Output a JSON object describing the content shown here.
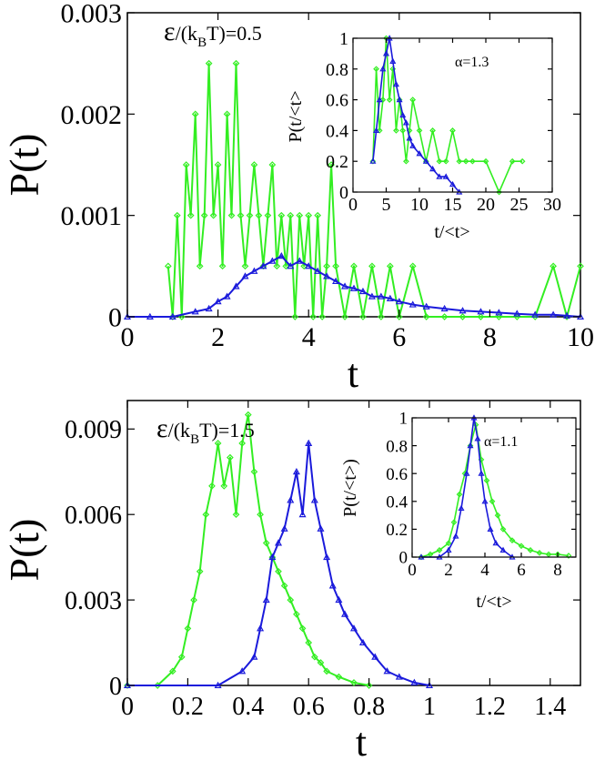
{
  "chart_data": [
    {
      "type": "line",
      "panel": "top",
      "annotation": {
        "symbol": "ε",
        "rest": "/(k",
        "sub": "B",
        "tail": "T)=0.5"
      },
      "xlabel": "t",
      "ylabel": "P(t)",
      "xlim": [
        0,
        10
      ],
      "ylim": [
        0,
        0.003
      ],
      "xticks": [
        0,
        2,
        4,
        6,
        8,
        10
      ],
      "yticks": [
        "0",
        "0.001",
        "0.002",
        "0.003"
      ],
      "ytick_values": [
        0,
        0.001,
        0.002,
        0.003
      ],
      "series": [
        {
          "color": "#33ee22",
          "marker": "diamond",
          "x": [
            0.9,
            1.0,
            1.1,
            1.2,
            1.3,
            1.4,
            1.5,
            1.6,
            1.7,
            1.8,
            1.9,
            2.0,
            2.1,
            2.2,
            2.3,
            2.4,
            2.5,
            2.6,
            2.7,
            2.8,
            2.9,
            3.0,
            3.1,
            3.2,
            3.3,
            3.4,
            3.5,
            3.6,
            3.7,
            3.8,
            3.9,
            4.0,
            4.1,
            4.2,
            4.3,
            4.4,
            4.5,
            4.6,
            4.8,
            5.0,
            5.2,
            5.4,
            5.6,
            5.8,
            6.0,
            6.3,
            6.6,
            7.0,
            7.4,
            7.8,
            8.2,
            8.6,
            9.0,
            9.4,
            9.7,
            10.0
          ],
          "y": [
            0.0005,
            0.0,
            0.001,
            0.0,
            0.0015,
            0.001,
            0.002,
            0.0005,
            0.001,
            0.0025,
            0.001,
            0.0015,
            0.0005,
            0.002,
            0.001,
            0.0025,
            0.001,
            0.0005,
            0.001,
            0.0015,
            0.001,
            0.0005,
            0.001,
            0.0015,
            0.0005,
            0.001,
            0.0005,
            0.001,
            0.0,
            0.001,
            0.0005,
            0.001,
            0.0,
            0.001,
            0.0,
            0.0005,
            0.0015,
            0.0005,
            0.0,
            0.0005,
            0.0,
            0.0005,
            0.0,
            0.0005,
            0.0,
            0.0005,
            0.0,
            0.0,
            0.0,
            0.0,
            0.0,
            0.0,
            0.0,
            0.0005,
            0.0,
            0.0005
          ]
        },
        {
          "color": "#1a1adb",
          "marker": "triangle",
          "x": [
            0.0,
            0.5,
            1.0,
            1.5,
            1.8,
            2.0,
            2.2,
            2.4,
            2.6,
            2.8,
            3.0,
            3.2,
            3.4,
            3.6,
            3.8,
            4.0,
            4.2,
            4.4,
            4.6,
            4.8,
            5.0,
            5.2,
            5.4,
            5.6,
            5.8,
            6.0,
            6.3,
            6.6,
            7.0,
            7.4,
            7.8,
            8.2,
            8.6,
            9.0,
            9.4,
            9.7,
            10.0
          ],
          "y": [
            0.0,
            0.0,
            0.0,
            5e-05,
            8e-05,
            0.00015,
            0.0002,
            0.0003,
            0.0004,
            0.00045,
            0.0005,
            0.00055,
            0.0006,
            0.0005,
            0.00055,
            0.0005,
            0.00045,
            0.0004,
            0.00035,
            0.0003,
            0.00028,
            0.00025,
            0.0002,
            0.0002,
            0.00018,
            0.00015,
            0.00012,
            0.0001,
            8e-05,
            6e-05,
            5e-05,
            4e-05,
            3e-05,
            2e-05,
            2e-05,
            1e-05,
            0.0
          ]
        }
      ],
      "inset": {
        "annotation": "α=1.3",
        "xlabel": "t/<t>",
        "ylabel": "P(t/<t>",
        "xlim": [
          0,
          30
        ],
        "ylim": [
          0,
          1
        ],
        "xticks": [
          0,
          5,
          10,
          15,
          20,
          25,
          30
        ],
        "yticks": [
          "0",
          "0.2",
          "0.4",
          "0.6",
          "0.8",
          "1"
        ],
        "ytick_values": [
          0,
          0.2,
          0.4,
          0.6,
          0.8,
          1.0
        ],
        "series": [
          {
            "color": "#33ee22",
            "marker": "diamond",
            "x": [
              3.0,
              3.5,
              4.0,
              4.5,
              5.0,
              5.5,
              6.0,
              6.5,
              7.0,
              7.5,
              8.0,
              8.5,
              9.0,
              10.0,
              11.0,
              12.0,
              13.0,
              14.0,
              15.0,
              16.0,
              17.0,
              18.0,
              20.0,
              22.0,
              24.0,
              25.5
            ],
            "y": [
              0.2,
              0.8,
              0.4,
              0.6,
              1.0,
              0.6,
              0.8,
              0.4,
              0.6,
              0.4,
              0.2,
              0.4,
              0.6,
              0.4,
              0.2,
              0.4,
              0.2,
              0.2,
              0.4,
              0.2,
              0.2,
              0.2,
              0.2,
              0.0,
              0.2,
              0.2
            ]
          },
          {
            "color": "#1a1adb",
            "marker": "triangle",
            "x": [
              3.0,
              3.5,
              4.0,
              4.5,
              5.0,
              5.5,
              6.0,
              6.5,
              7.0,
              7.5,
              8.0,
              8.5,
              9.0,
              10.0,
              11.0,
              12.0,
              13.0,
              14.0,
              15.0,
              16.0
            ],
            "y": [
              0.2,
              0.4,
              0.6,
              0.8,
              0.9,
              1.0,
              0.85,
              0.7,
              0.6,
              0.5,
              0.45,
              0.35,
              0.3,
              0.25,
              0.2,
              0.15,
              0.1,
              0.1,
              0.05,
              0.0
            ]
          }
        ]
      }
    },
    {
      "type": "line",
      "panel": "bottom",
      "annotation": {
        "symbol": "ε",
        "rest": "/(k",
        "sub": "B",
        "tail": "T)=1.5"
      },
      "xlabel": "t",
      "ylabel": "P(t)",
      "xlim": [
        0,
        1.5
      ],
      "ylim": [
        0,
        0.01
      ],
      "xticks": [
        "0",
        "0.2",
        "0.4",
        "0.6",
        "0.8",
        "1",
        "1.2",
        "1.4"
      ],
      "xtick_values": [
        0,
        0.2,
        0.4,
        0.6,
        0.8,
        1.0,
        1.2,
        1.4
      ],
      "yticks": [
        "0",
        "0.003",
        "0.006",
        "0.009"
      ],
      "ytick_values": [
        0,
        0.003,
        0.006,
        0.009
      ],
      "series": [
        {
          "color": "#33ee22",
          "marker": "diamond",
          "x": [
            0.0,
            0.1,
            0.15,
            0.18,
            0.2,
            0.22,
            0.24,
            0.26,
            0.28,
            0.3,
            0.32,
            0.34,
            0.36,
            0.38,
            0.4,
            0.42,
            0.44,
            0.46,
            0.48,
            0.5,
            0.52,
            0.54,
            0.56,
            0.58,
            0.6,
            0.62,
            0.64,
            0.66,
            0.7,
            0.75,
            0.8
          ],
          "y": [
            0.0,
            0.0,
            0.0005,
            0.001,
            0.002,
            0.003,
            0.004,
            0.006,
            0.007,
            0.0085,
            0.007,
            0.008,
            0.006,
            0.0085,
            0.0095,
            0.0075,
            0.006,
            0.005,
            0.0045,
            0.004,
            0.0035,
            0.003,
            0.0025,
            0.002,
            0.0015,
            0.001,
            0.0008,
            0.0005,
            0.0003,
            0.0001,
            0.0
          ]
        },
        {
          "color": "#1a1adb",
          "marker": "triangle",
          "x": [
            0.0,
            0.3,
            0.38,
            0.42,
            0.44,
            0.46,
            0.48,
            0.5,
            0.52,
            0.54,
            0.56,
            0.58,
            0.6,
            0.62,
            0.64,
            0.66,
            0.68,
            0.7,
            0.72,
            0.75,
            0.78,
            0.82,
            0.86,
            0.9,
            0.95,
            1.0
          ],
          "y": [
            0.0,
            0.0,
            0.0005,
            0.001,
            0.002,
            0.003,
            0.0045,
            0.005,
            0.0055,
            0.0065,
            0.0075,
            0.006,
            0.0085,
            0.0065,
            0.0055,
            0.0045,
            0.0035,
            0.003,
            0.0025,
            0.002,
            0.0015,
            0.001,
            0.0005,
            0.0003,
            0.0001,
            0.0
          ]
        }
      ],
      "inset": {
        "annotation": "α=1.1",
        "xlabel": "t/<t>",
        "ylabel": "P(t/<t>)",
        "xlim": [
          0,
          9
        ],
        "ylim": [
          0,
          1
        ],
        "xticks": [
          0,
          2,
          4,
          6,
          8
        ],
        "yticks": [
          "0",
          "0.2",
          "0.4",
          "0.6",
          "0.8",
          "1"
        ],
        "ytick_values": [
          0,
          0.2,
          0.4,
          0.6,
          0.8,
          1.0
        ],
        "series": [
          {
            "color": "#33ee22",
            "marker": "diamond",
            "x": [
              0.5,
              1.0,
              1.5,
              2.0,
              2.3,
              2.6,
              2.9,
              3.2,
              3.5,
              3.8,
              4.1,
              4.4,
              4.7,
              5.0,
              5.5,
              6.0,
              6.5,
              7.0,
              7.5,
              8.0,
              8.6
            ],
            "y": [
              0.0,
              0.02,
              0.05,
              0.1,
              0.25,
              0.45,
              0.6,
              0.8,
              0.95,
              0.7,
              0.55,
              0.4,
              0.3,
              0.2,
              0.12,
              0.08,
              0.05,
              0.03,
              0.02,
              0.02,
              0.01
            ]
          },
          {
            "color": "#1a1adb",
            "marker": "triangle",
            "x": [
              0.5,
              1.5,
              2.0,
              2.4,
              2.7,
              3.0,
              3.2,
              3.4,
              3.6,
              3.8,
              4.0,
              4.3,
              4.6,
              5.0,
              5.5
            ],
            "y": [
              0.0,
              0.0,
              0.05,
              0.15,
              0.35,
              0.6,
              0.8,
              1.0,
              0.85,
              0.6,
              0.4,
              0.2,
              0.1,
              0.05,
              0.0
            ]
          }
        ]
      }
    }
  ]
}
